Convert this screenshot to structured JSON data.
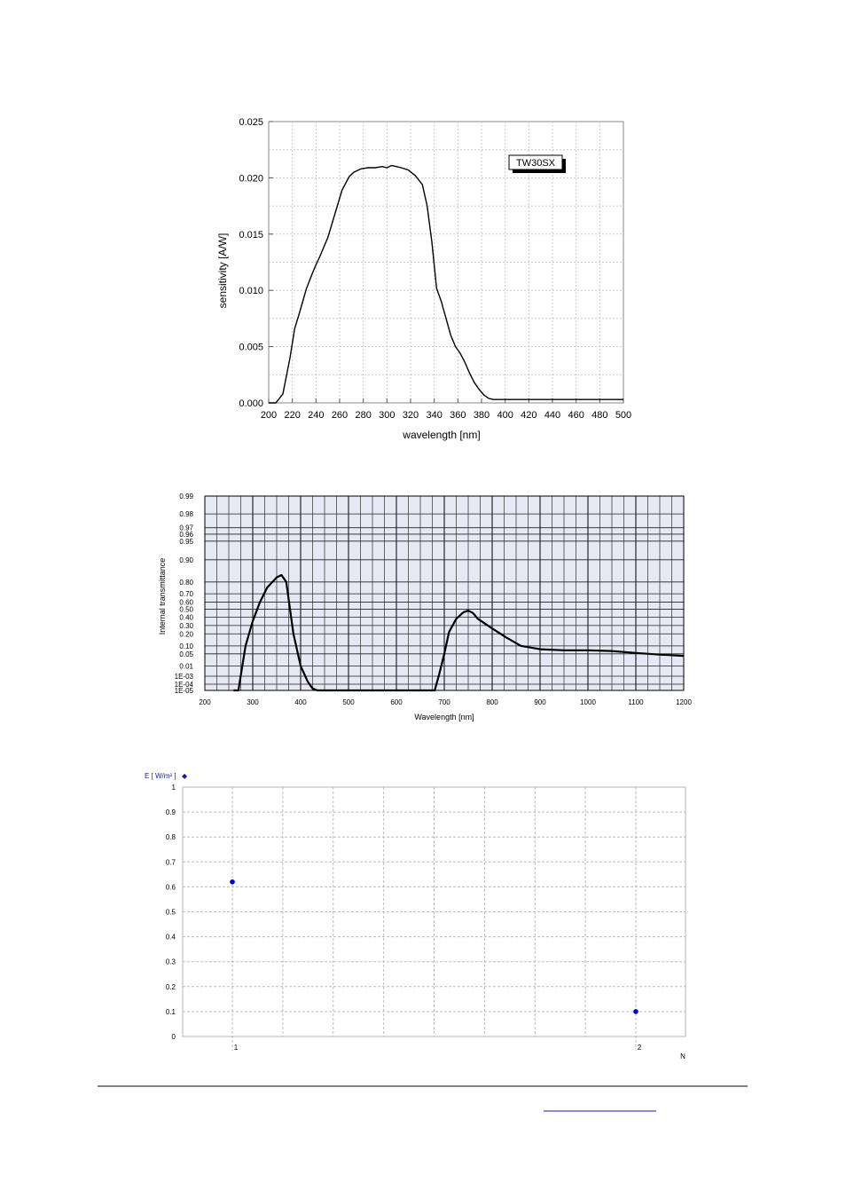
{
  "chart_data": [
    {
      "type": "line",
      "xlabel": "wavelength [nm]",
      "ylabel": "sensitivity [A/W]",
      "legend": "TW30SX",
      "legend_position": "top-right",
      "grid": true,
      "xlim": [
        200,
        500
      ],
      "ylim": [
        0,
        0.025
      ],
      "xticks": [
        "200",
        "220",
        "240",
        "260",
        "280",
        "300",
        "320",
        "340",
        "360",
        "380",
        "400",
        "420",
        "440",
        "460",
        "480",
        "500"
      ],
      "yticks": [
        "0.000",
        "0.005",
        "0.010",
        "0.015",
        "0.020",
        "0.025"
      ],
      "series": [
        {
          "name": "TW30SX",
          "x": [
            200,
            206,
            212,
            218,
            222,
            226,
            232,
            238,
            244,
            250,
            256,
            262,
            268,
            272,
            278,
            284,
            290,
            296,
            300,
            304,
            308,
            312,
            318,
            324,
            330,
            334,
            338,
            342,
            346,
            350,
            354,
            358,
            362,
            366,
            370,
            374,
            378,
            382,
            386,
            390,
            394,
            398,
            402,
            406,
            410,
            420,
            440,
            460,
            480,
            500
          ],
          "y": [
            0.0,
            0.0,
            0.0008,
            0.004,
            0.0066,
            0.008,
            0.0102,
            0.0118,
            0.0132,
            0.0147,
            0.0168,
            0.0189,
            0.0201,
            0.0205,
            0.0208,
            0.0209,
            0.0209,
            0.021,
            0.0209,
            0.0211,
            0.021,
            0.0209,
            0.0207,
            0.0202,
            0.0194,
            0.0175,
            0.0143,
            0.0102,
            0.009,
            0.0075,
            0.006,
            0.005,
            0.0044,
            0.0036,
            0.0026,
            0.0018,
            0.0012,
            0.0007,
            0.0004,
            0.0003,
            0.0003,
            0.0003,
            0.0003,
            0.0003,
            0.0003,
            0.0003,
            0.0003,
            0.0003,
            0.0003,
            0.0003
          ]
        }
      ]
    },
    {
      "type": "line",
      "xlabel": "Wavelength [nm]",
      "ylabel": "Internal transmittance",
      "grid": true,
      "background": "#e6e8f4",
      "xlim": [
        200,
        1200
      ],
      "xticks": [
        "200",
        "300",
        "400",
        "500",
        "600",
        "700",
        "800",
        "900",
        "1000",
        "1100",
        "1200"
      ],
      "yticks": [
        "0.99",
        "0.98",
        "0.97",
        "0.96",
        "0.95",
        "0.90",
        "0.80",
        "0.70",
        "0.60",
        "0.50",
        "0.40",
        "0.30",
        "0.20",
        "0.10",
        "0.05",
        "0.01",
        "1E-03",
        "1E-04",
        "1E-05"
      ],
      "series": [
        {
          "x": [
            260,
            270,
            285,
            300,
            315,
            330,
            350,
            360,
            370,
            385,
            400,
            415,
            425,
            435,
            440,
            450,
            480,
            500,
            600,
            650,
            670,
            680,
            690,
            700,
            710,
            725,
            740,
            750,
            760,
            770,
            780,
            800,
            830,
            860,
            900,
            950,
            1000,
            1050,
            1100,
            1150,
            1200
          ],
          "y": [
            1e-05,
            1e-05,
            0.1,
            0.35,
            0.6,
            0.75,
            0.82,
            0.83,
            0.8,
            0.2,
            0.01,
            0.0002,
            2e-05,
            1e-05,
            1e-05,
            1e-05,
            1e-05,
            1e-05,
            1e-05,
            1e-05,
            1e-05,
            1e-05,
            0.002,
            0.05,
            0.22,
            0.38,
            0.46,
            0.48,
            0.45,
            0.38,
            0.34,
            0.26,
            0.16,
            0.1,
            0.075,
            0.068,
            0.068,
            0.064,
            0.054,
            0.045,
            0.038
          ]
        }
      ]
    },
    {
      "type": "scatter",
      "ylabel": "E [ W/m² ]",
      "ylabel_marker": "◆",
      "xlabel": "N",
      "ylim": [
        0,
        1
      ],
      "yticks": [
        "0",
        "0.1",
        "0.2",
        "0.3",
        "0.4",
        "0.5",
        "0.6",
        "0.7",
        "0.8",
        "0.9",
        "1"
      ],
      "xticks": [
        "1",
        "2"
      ],
      "grid": true,
      "marker_color": "#0000cc",
      "series": [
        {
          "x": [
            1,
            2
          ],
          "y": [
            0.62,
            0.1
          ]
        }
      ]
    }
  ]
}
